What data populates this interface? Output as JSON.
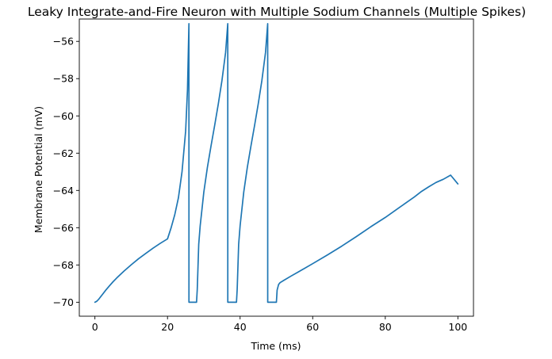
{
  "chart_data": {
    "type": "line",
    "title": "Leaky Integrate-and-Fire Neuron with Multiple Sodium Channels (Multiple Spikes)",
    "xlabel": "Time (ms)",
    "ylabel": "Membrane Potential (mV)",
    "xlim": [
      -4.3,
      104.3
    ],
    "ylim": [
      -70.75,
      -54.8
    ],
    "xticks": [
      0,
      20,
      40,
      60,
      80,
      100
    ],
    "xtick_labels": [
      "0",
      "20",
      "40",
      "60",
      "80",
      "100"
    ],
    "yticks": [
      -70,
      -68,
      -66,
      -64,
      -62,
      -60,
      -58,
      -56
    ],
    "ytick_labels": [
      "−70",
      "−68",
      "−66",
      "−64",
      "−62",
      "−60",
      "−58",
      "−56"
    ],
    "grid": false,
    "legend": false,
    "color": "#1f77b4",
    "series": [
      {
        "x": [
          0,
          0.5,
          1,
          2,
          3,
          4,
          5,
          6,
          8,
          10,
          12,
          14,
          16,
          18,
          20,
          21,
          22,
          23,
          24,
          25,
          25.5,
          25.9,
          25.91,
          26,
          27,
          28,
          28.2,
          28.6,
          29,
          30,
          31,
          32,
          33,
          34,
          35,
          36,
          36.6,
          36.61,
          37,
          38,
          39,
          39.2,
          39.6,
          40,
          41,
          42,
          43,
          44,
          45,
          46,
          47,
          47.6,
          47.61,
          48,
          49,
          50,
          50.2,
          50.6,
          51,
          52,
          54,
          56,
          60,
          64,
          68,
          72,
          76,
          80,
          84,
          88,
          90,
          92,
          94,
          96,
          98,
          100
        ],
        "y": [
          -70,
          -69.95,
          -69.85,
          -69.6,
          -69.35,
          -69.12,
          -68.9,
          -68.7,
          -68.33,
          -67.99,
          -67.67,
          -67.38,
          -67.1,
          -66.84,
          -66.6,
          -66.0,
          -65.3,
          -64.4,
          -63.0,
          -60.8,
          -58.6,
          -55.05,
          -70,
          -70,
          -70,
          -70,
          -69.3,
          -66.9,
          -65.9,
          -64.1,
          -62.75,
          -61.6,
          -60.5,
          -59.35,
          -58.1,
          -56.6,
          -55.05,
          -70,
          -70,
          -70,
          -70,
          -69.3,
          -66.9,
          -65.9,
          -64.1,
          -62.75,
          -61.6,
          -60.5,
          -59.35,
          -58.1,
          -56.6,
          -55.05,
          -70,
          -70,
          -70,
          -70,
          -69.35,
          -69.05,
          -68.95,
          -68.83,
          -68.6,
          -68.38,
          -67.93,
          -67.47,
          -66.99,
          -66.48,
          -65.95,
          -65.45,
          -64.9,
          -64.35,
          -64.05,
          -63.8,
          -63.57,
          -63.4,
          -63.18,
          -63.65
        ]
      }
    ]
  }
}
